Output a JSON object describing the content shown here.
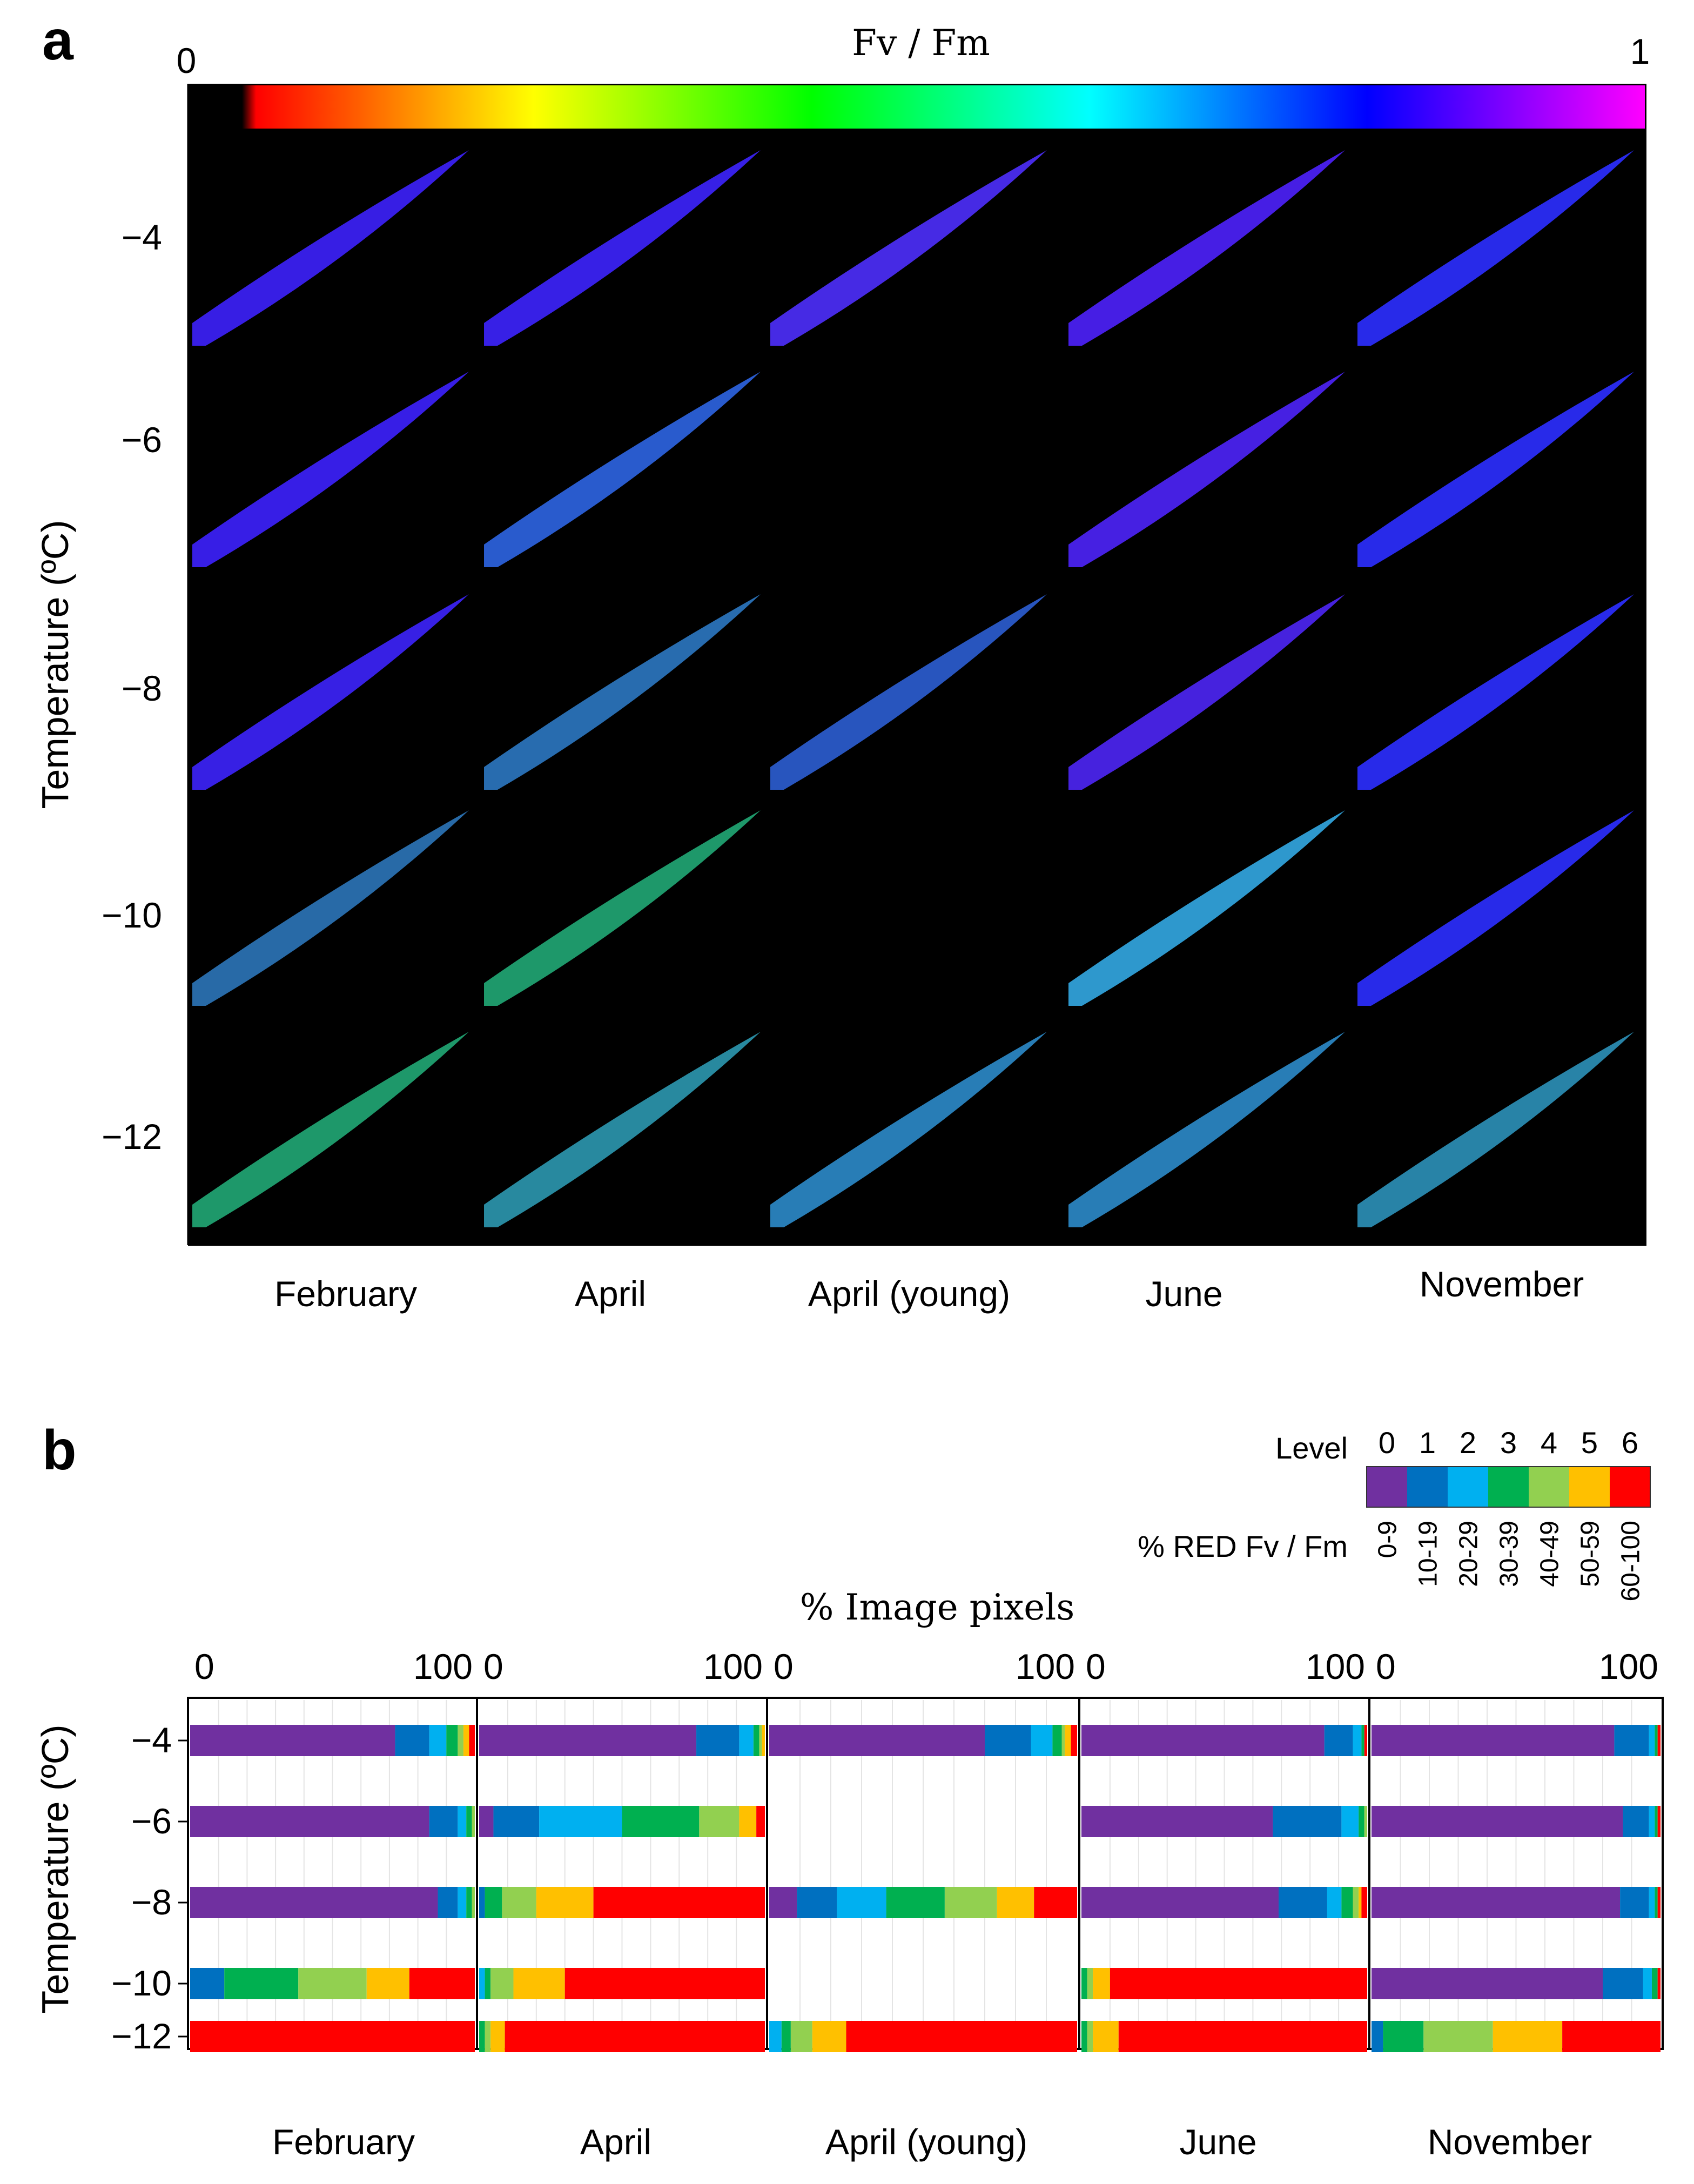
{
  "chart_data": [
    {
      "panel": "a",
      "type": "heatmap",
      "colorbar": {
        "title": "Fv / Fm",
        "min_label": "0",
        "max_label": "1",
        "stops": [
          "#000000",
          "#ff0000",
          "#ff8000",
          "#ffff00",
          "#80ff00",
          "#00ff00",
          "#00ff80",
          "#00ffff",
          "#0080ff",
          "#0000ff",
          "#8000ff",
          "#ff00ff"
        ]
      },
      "ylabel": "Temperature (ºC)",
      "temperatures": [
        "−4",
        "−6",
        "−8",
        "−10",
        "−12"
      ],
      "months": [
        "February",
        "April",
        "April (young)",
        "June",
        "November"
      ],
      "leaf_colors": [
        [
          "#3a20f0",
          "#3a22f2",
          "#4a2cf0",
          "#4a20f0",
          "#2a2cf6"
        ],
        [
          "#3a20f2",
          "#2b60d8",
          null,
          "#4a22ee",
          "#2a2cf6"
        ],
        [
          "#3a22f0",
          "#2a72b8",
          "#2a5ac8",
          "#4a24ea",
          "#2a2cf6"
        ],
        [
          "#2a70b0",
          "#20a070",
          null,
          "#30a0d8",
          "#2a2cf6"
        ],
        [
          "#20a070",
          "#2a90a8",
          "#2a84c0",
          "#2a84c0",
          "#2a8ab0"
        ]
      ]
    },
    {
      "panel": "b",
      "type": "bar",
      "stacked": true,
      "orientation": "horizontal",
      "title": "% Image pixels",
      "ylabel": "Temperature (ºC)",
      "xlim": [
        0,
        100
      ],
      "axis_tick_labels": [
        "0",
        "100"
      ],
      "categories": [
        "−4",
        "−6",
        "−8",
        "−10",
        "−12"
      ],
      "legend": {
        "title": "Level",
        "subtitle": "% RED Fv / Fm",
        "levels": [
          "0",
          "1",
          "2",
          "3",
          "4",
          "5",
          "6"
        ],
        "ranges": [
          "0-9",
          "10-19",
          "20-29",
          "30-39",
          "40-49",
          "50-59",
          "60-100"
        ],
        "colors": [
          "#7030a0",
          "#0070c0",
          "#00b0f0",
          "#00b050",
          "#92d050",
          "#ffc000",
          "#ff0000"
        ]
      },
      "panels": [
        {
          "month": "February",
          "rows": [
            [
              72,
              12,
              6,
              4,
              2,
              2,
              2
            ],
            [
              84,
              10,
              3,
              2,
              1,
              0,
              0
            ],
            [
              87,
              7,
              3,
              2,
              1,
              0,
              0
            ],
            [
              0,
              12,
              0,
              26,
              24,
              15,
              23
            ],
            [
              0,
              0,
              0,
              0,
              0,
              0,
              100
            ]
          ]
        },
        {
          "month": "April",
          "rows": [
            [
              76,
              15,
              5,
              2,
              1,
              1,
              0
            ],
            [
              5,
              16,
              29,
              27,
              14,
              6,
              3
            ],
            [
              0,
              2,
              0,
              6,
              12,
              20,
              60
            ],
            [
              0,
              0,
              2,
              2,
              8,
              18,
              70
            ],
            [
              0,
              0,
              0,
              2,
              2,
              5,
              91
            ]
          ]
        },
        {
          "month": "April (young)",
          "rows": [
            [
              70,
              15,
              7,
              3,
              1,
              2,
              2
            ],
            null,
            [
              9,
              13,
              16,
              19,
              17,
              12,
              14
            ],
            null,
            [
              0,
              0,
              4,
              3,
              7,
              11,
              75
            ]
          ]
        },
        {
          "month": "June",
          "rows": [
            [
              85,
              10,
              3,
              1,
              0,
              0,
              1
            ],
            [
              67,
              24,
              6,
              2,
              1,
              0,
              0
            ],
            [
              69,
              17,
              5,
              4,
              2,
              1,
              2
            ],
            [
              0,
              0,
              0,
              2,
              2,
              6,
              90
            ],
            [
              0,
              0,
              0,
              2,
              2,
              9,
              87
            ]
          ]
        },
        {
          "month": "November",
          "rows": [
            [
              84,
              12,
              2,
              1,
              0,
              0,
              1
            ],
            [
              87,
              9,
              2,
              1,
              0,
              0,
              1
            ],
            [
              86,
              10,
              2,
              1,
              0,
              0,
              1
            ],
            [
              80,
              14,
              3,
              2,
              0,
              0,
              1
            ],
            [
              0,
              4,
              0,
              14,
              24,
              24,
              34
            ]
          ]
        }
      ]
    }
  ]
}
